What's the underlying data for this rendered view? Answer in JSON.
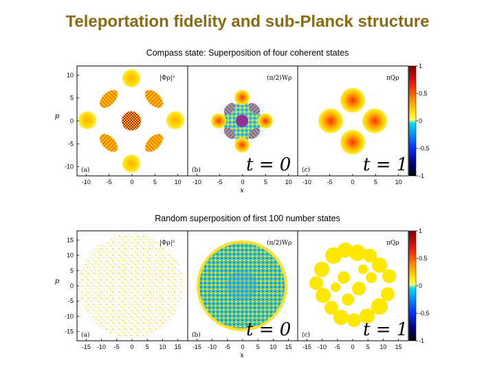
{
  "slide": {
    "title": "Teleportation fidelity and sub-Planck structure",
    "caption_top": "Compass state: Superposition of four coherent states",
    "caption_bottom": "Random superposition of first 100 number states"
  },
  "panels": {
    "top": {
      "quantities": [
        "|Φρ|²",
        "(π/2)Wρ",
        "πQρ"
      ],
      "letters": [
        "(a)",
        "(b)",
        "(c)"
      ],
      "t_labels": [
        "",
        "t = 0",
        "t = 1"
      ],
      "xticks": [
        -10,
        -5,
        0,
        5,
        10
      ],
      "yticks": [
        10,
        5,
        0,
        -5,
        -10
      ],
      "xlabel": "x",
      "ylabel": "p"
    },
    "bottom": {
      "quantities": [
        "|Φρ|²",
        "(π/2)Wρ",
        "πQρ"
      ],
      "letters": [
        "(a)",
        "(b)",
        "(c)"
      ],
      "t_labels": [
        "",
        "t = 0",
        "t = 1"
      ],
      "xticks": [
        -15,
        -10,
        -5,
        0,
        5,
        10,
        15
      ],
      "yticks": [
        15,
        10,
        5,
        0,
        -5,
        -10,
        -15
      ],
      "xlabel": "x",
      "ylabel": "p"
    }
  },
  "colorbar": {
    "ticks": [
      1,
      0.5,
      0,
      -0.5,
      -1
    ],
    "colors": [
      "#7a0000",
      "#d01010",
      "#ff4000",
      "#ff9a00",
      "#ffe000",
      "#ffff60",
      "#00e0ff",
      "#0090ff",
      "#0030ff",
      "#000080",
      "#000010"
    ]
  },
  "chart_data": [
    {
      "type": "heatmap",
      "title": "Compass state: Superposition of four coherent states",
      "xlabel": "x",
      "ylabel": "p",
      "xlim": [
        -12,
        12
      ],
      "ylim": [
        -12,
        12
      ],
      "panels": [
        "|Φρ|²",
        "(π/2)Wρ t = 0",
        "πQρ t = 1"
      ],
      "colorbar_range": [
        -1,
        1
      ]
    },
    {
      "type": "heatmap",
      "title": "Random superposition of first 100 number states",
      "xlabel": "x",
      "ylabel": "p",
      "xlim": [
        -18,
        18
      ],
      "ylim": [
        -18,
        18
      ],
      "panels": [
        "|Φρ|²",
        "(π/2)Wρ t = 0",
        "πQρ t = 1"
      ],
      "colorbar_range": [
        -1,
        1
      ]
    }
  ]
}
